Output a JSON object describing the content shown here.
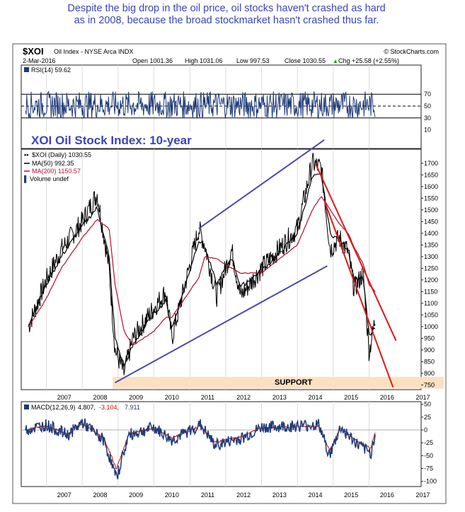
{
  "annotation": {
    "line1": "Despite the big drop in the oil price, oil stocks haven't crashed as hard",
    "line2": "as  in 2008, because the broad stockmarket hasn't crashed thus far."
  },
  "header": {
    "symbol": "$XOI",
    "name": "Oil Index - NYSE Arca  INDX",
    "date": "2-Mar-2016",
    "credit": "© StockCharts.com",
    "open": "Open 1001.36",
    "high": "High 1031.06",
    "low": "Low 997.53",
    "close": "Close 1030.55",
    "chg": "Chg +25.58 (+2.55%)",
    "chg_sym": "▲"
  },
  "rsi_panel": {
    "label": "RSI(14) 59.62",
    "ticks": [
      "70",
      "50",
      "30",
      "10"
    ],
    "title": "XOI Oil Stock Index: 10-year"
  },
  "price_panel": {
    "legend": {
      "series": "$XOI (Daily) 1030.55",
      "ma50": "MA(50) 992.35",
      "ma200": "MA(200) 1150.57",
      "volume": "Volume undef"
    },
    "ticks": [
      "1700",
      "1650",
      "1600",
      "1550",
      "1500",
      "1450",
      "1400",
      "1350",
      "1300",
      "1250",
      "1200",
      "1150",
      "1100",
      "1050",
      "1000",
      "950",
      "900",
      "850",
      "800",
      "750"
    ],
    "support_label": "SUPPORT"
  },
  "macd_panel": {
    "label_a": "MACD(12,26,9)",
    "label_b": "4.807,",
    "label_c": "-3.104,",
    "label_d": "7.911",
    "ticks": [
      "50",
      "25",
      "0",
      "-25",
      "-50",
      "-75",
      "-100"
    ]
  },
  "x_years": [
    "2007",
    "2008",
    "2009",
    "2010",
    "2011",
    "2012",
    "2013",
    "2014",
    "2015",
    "2016",
    "2017"
  ],
  "colors": {
    "annotation": "#3a45b8",
    "price": "#000000",
    "ma50": "#000000",
    "ma200": "#b01030",
    "rsi": "#1e3a78",
    "macd": "#1e3a78",
    "signal": "#c01010",
    "trendline_blue": "#4a4ab0",
    "trendline_red": "#e01818",
    "support_band": "#fbe0c2"
  },
  "chart_data": [
    {
      "type": "line",
      "title": "XOI Oil Stock Index: 10-year",
      "ylabel": "",
      "ylim": [
        730,
        1760
      ],
      "x": [
        "2006-07",
        "2007-01",
        "2007-06",
        "2008-01",
        "2008-06",
        "2008-10",
        "2008-12",
        "2009-03",
        "2009-06",
        "2010-01",
        "2010-05",
        "2010-07",
        "2011-04",
        "2011-06",
        "2011-10",
        "2012-03",
        "2012-06",
        "2013-01",
        "2013-06",
        "2014-01",
        "2014-06",
        "2014-09",
        "2014-12",
        "2015-03",
        "2015-06",
        "2015-08",
        "2015-11",
        "2016-01",
        "2016-03"
      ],
      "series": [
        {
          "name": "$XOI (Daily)",
          "values": [
            1000,
            1200,
            1330,
            1450,
            1570,
            1250,
            900,
            800,
            950,
            1080,
            1150,
            950,
            1420,
            1350,
            1130,
            1330,
            1130,
            1250,
            1320,
            1420,
            1700,
            1680,
            1330,
            1380,
            1320,
            1160,
            1230,
            890,
            1030
          ]
        },
        {
          "name": "MA(50)",
          "values": [
            1010,
            1180,
            1300,
            1430,
            1510,
            1300,
            950,
            830,
            920,
            1060,
            1110,
            990,
            1370,
            1340,
            1180,
            1300,
            1170,
            1240,
            1300,
            1400,
            1640,
            1650,
            1400,
            1370,
            1330,
            1200,
            1210,
            960,
            992
          ]
        },
        {
          "name": "MA(200)",
          "values": [
            1000,
            1120,
            1250,
            1380,
            1460,
            1420,
            1180,
            980,
            920,
            980,
            1040,
            1040,
            1210,
            1300,
            1290,
            1250,
            1230,
            1230,
            1280,
            1350,
            1500,
            1560,
            1500,
            1440,
            1400,
            1340,
            1270,
            1180,
            1150
          ]
        }
      ],
      "trendlines": [
        {
          "color": "blue",
          "points": [
            [
              "2008-12",
              760
            ],
            [
              "2014-11",
              1260
            ]
          ]
        },
        {
          "color": "blue",
          "points": [
            [
              "2011-04",
              1420
            ],
            [
              "2014-10",
              1800
            ]
          ]
        },
        {
          "color": "red",
          "points": [
            [
              "2014-07",
              1700
            ],
            [
              "2016-10",
              940
            ]
          ]
        },
        {
          "color": "red",
          "points": [
            [
              "2014-10",
              1540
            ],
            [
              "2016-09",
              740
            ]
          ]
        }
      ],
      "support_band": [
        750,
        785
      ]
    },
    {
      "type": "line",
      "title": "RSI(14)",
      "ylim": [
        0,
        100
      ],
      "reference_lines": [
        30,
        50,
        70
      ],
      "series": [
        {
          "name": "RSI(14)",
          "values": [
            59.62
          ]
        }
      ]
    },
    {
      "type": "line",
      "title": "MACD(12,26,9)",
      "ylim": [
        -110,
        55
      ],
      "series": [
        {
          "name": "MACD",
          "values": [
            4.807
          ]
        },
        {
          "name": "Signal",
          "values": [
            -3.104
          ]
        },
        {
          "name": "Histogram",
          "values": [
            7.911
          ]
        }
      ]
    }
  ]
}
